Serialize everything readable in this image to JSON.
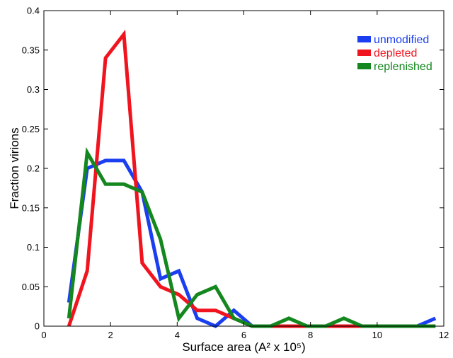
{
  "chart_data": {
    "type": "line",
    "title": "",
    "xlabel": "Surface area (A² x 10⁵)",
    "ylabel": "Fraction virions",
    "xlim": [
      0,
      12
    ],
    "ylim": [
      0,
      0.4
    ],
    "xticks": [
      0,
      2,
      4,
      6,
      8,
      10,
      12
    ],
    "xtick_labels": [
      "0",
      "2",
      "4",
      "6",
      "8",
      "10",
      "12"
    ],
    "yticks": [
      0,
      0.05,
      0.1,
      0.15,
      0.2,
      0.25,
      0.3,
      0.35,
      0.4
    ],
    "ytick_labels": [
      "0",
      "0.05",
      "0.1",
      "0.15",
      "0.2",
      "0.25",
      "0.3",
      "0.35",
      "0.4"
    ],
    "grid": false,
    "legend_position": "top-right",
    "x": [
      0.75,
      1.3,
      1.85,
      2.4,
      2.95,
      3.5,
      4.05,
      4.6,
      5.15,
      5.7,
      6.25,
      6.8,
      7.35,
      7.9,
      8.45,
      9.0,
      9.55,
      10.1,
      10.65,
      11.2,
      11.75
    ],
    "series": [
      {
        "name": "unmodified",
        "color": "#1a3ef0",
        "values": [
          0.03,
          0.2,
          0.21,
          0.21,
          0.17,
          0.06,
          0.07,
          0.01,
          0.0,
          0.02,
          0.0,
          0.0,
          0.0,
          0.0,
          0.0,
          0.0,
          0.0,
          0.0,
          0.0,
          0.0,
          0.01
        ]
      },
      {
        "name": "depleted",
        "color": "#f0141e",
        "values": [
          0.0,
          0.07,
          0.34,
          0.37,
          0.08,
          0.05,
          0.04,
          0.02,
          0.02,
          0.01,
          0.0,
          0.0,
          0.0,
          0.0,
          0.0,
          0.0,
          0.0,
          0.0,
          0.0,
          0.0,
          0.0
        ]
      },
      {
        "name": "replenished",
        "color": "#14871e",
        "values": [
          0.01,
          0.22,
          0.18,
          0.18,
          0.17,
          0.11,
          0.01,
          0.04,
          0.05,
          0.01,
          0.0,
          0.0,
          0.01,
          0.0,
          0.0,
          0.01,
          0.0,
          0.0,
          0.0,
          0.0,
          0.0
        ]
      }
    ]
  }
}
